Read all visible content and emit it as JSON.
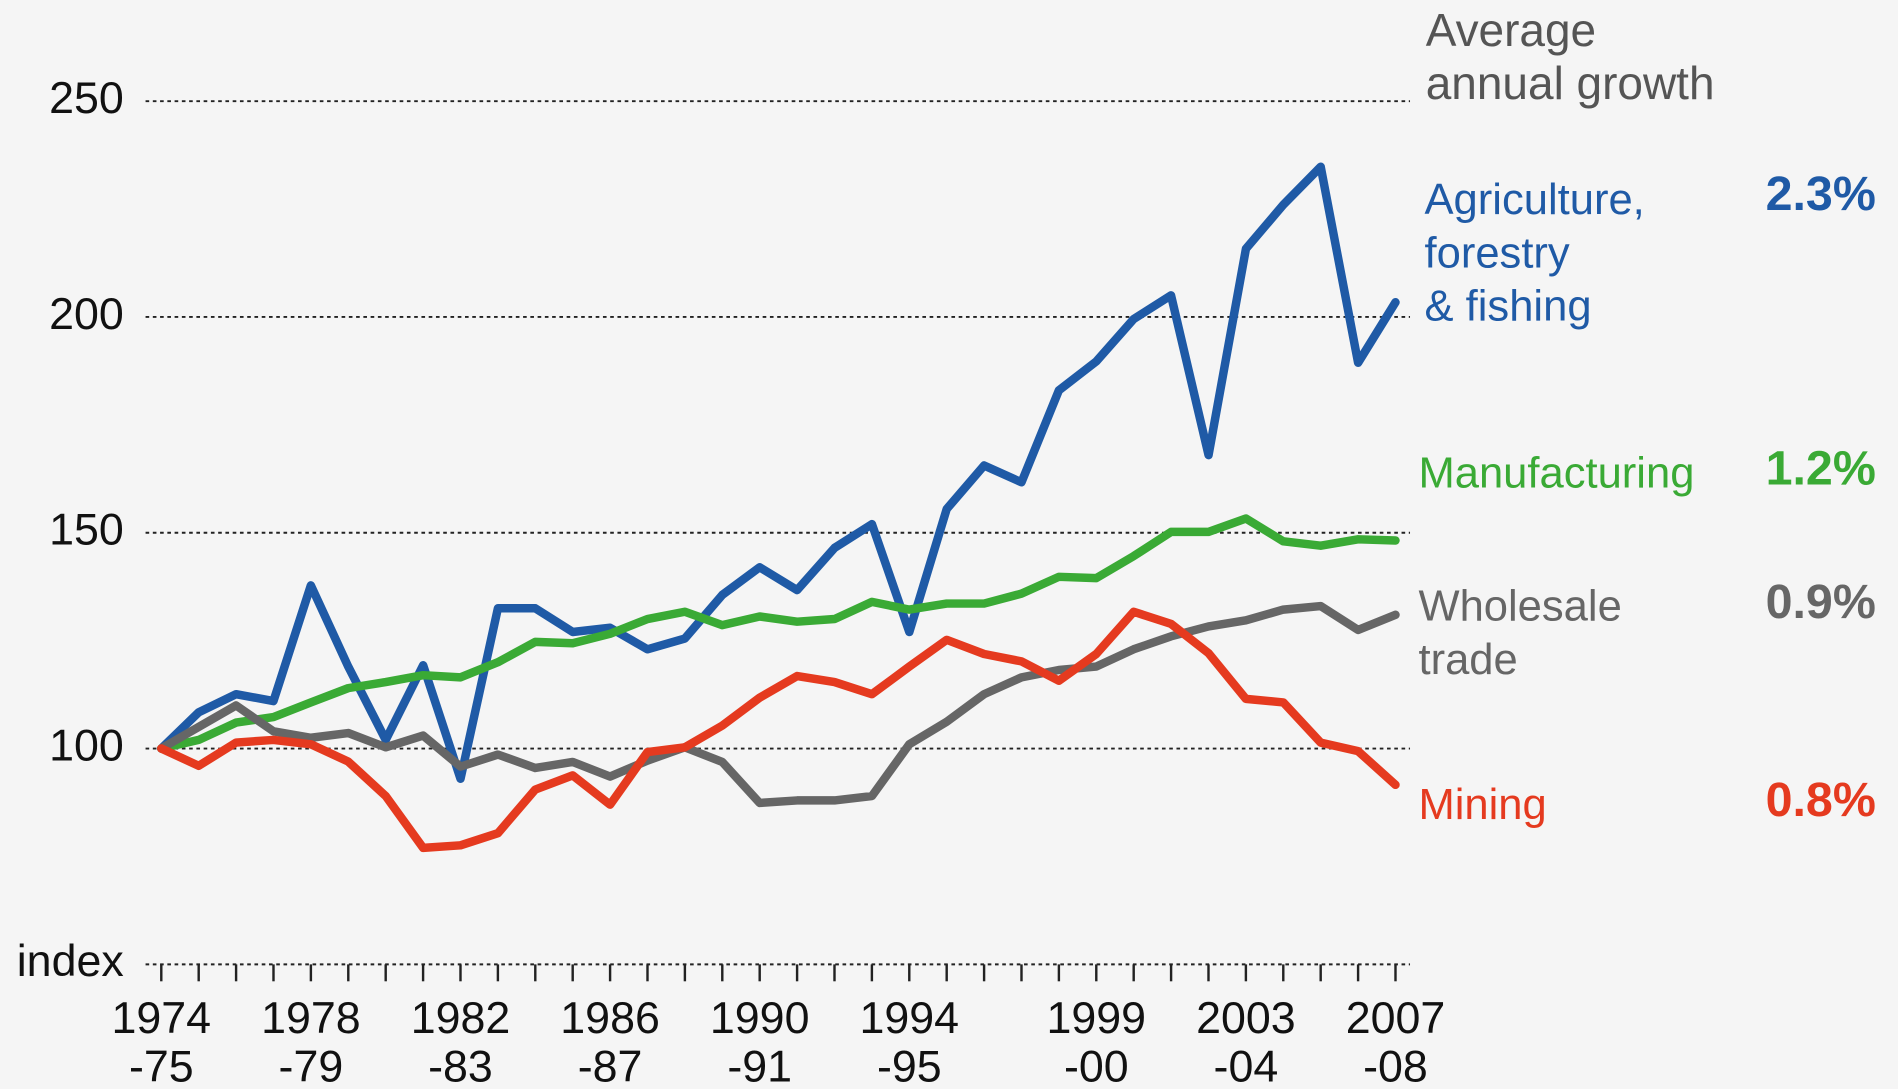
{
  "chart_data": {
    "type": "line",
    "annotation": "Average\nannual growth",
    "y_unit_label": "index",
    "categories": [
      "1974\n-75",
      null,
      null,
      null,
      "1978\n-79",
      null,
      null,
      null,
      "1982\n-83",
      null,
      null,
      null,
      "1986\n-87",
      null,
      null,
      null,
      "1990\n-91",
      null,
      null,
      null,
      "1994\n-95",
      null,
      null,
      null,
      null,
      "1999\n-00",
      null,
      null,
      null,
      "2003\n-04",
      null,
      null,
      null,
      "2007\n-08"
    ],
    "ylim": [
      50,
      260
    ],
    "yticks": [
      100,
      150,
      200,
      250
    ],
    "grid": true,
    "series": [
      {
        "name": "Agriculture,\nforestry\n& fishing",
        "growth_label": "2.3%",
        "color": "#1f5aa6",
        "values": [
          100,
          108.4,
          112.6,
          111,
          137.8,
          119,
          102,
          119.3,
          93,
          132.5,
          132.5,
          127,
          128,
          123,
          125.5,
          135.6,
          142,
          136.7,
          146.5,
          152,
          127,
          155.5,
          165.6,
          161.7,
          183,
          189.7,
          199.5,
          205,
          168,
          215.8,
          226,
          234.8,
          189.4,
          203.4
        ]
      },
      {
        "name": "Manufacturing",
        "growth_label": "1.2%",
        "color": "#3aaa35",
        "values": [
          100,
          102,
          106,
          107.3,
          110.7,
          114,
          115.4,
          117,
          116.5,
          120,
          124.7,
          124.4,
          126.6,
          130,
          131.7,
          128.6,
          130.6,
          129.4,
          130,
          134,
          132.2,
          133.6,
          133.6,
          135.9,
          139.8,
          139.5,
          144.6,
          150.2,
          150.2,
          153.3,
          148,
          147,
          148.5,
          148.2
        ]
      },
      {
        "name": "Wholesale\ntrade",
        "growth_label": "0.9%",
        "color": "#666666",
        "values": [
          100,
          105,
          110,
          104,
          102.5,
          103.6,
          100.3,
          103,
          95.8,
          98.6,
          95.5,
          96.9,
          93.5,
          97.2,
          100.3,
          96.9,
          87.4,
          88,
          88,
          89,
          101,
          106.2,
          112.6,
          116.5,
          118.2,
          119,
          123,
          126,
          128.3,
          129.7,
          132.2,
          133,
          127.5,
          131
        ]
      },
      {
        "name": "Mining",
        "growth_label": "0.8%",
        "color": "#e53a1f",
        "values": [
          100,
          96,
          101.4,
          102,
          101,
          97,
          89,
          77,
          77.6,
          80.4,
          90.5,
          93.8,
          87,
          99.2,
          100.3,
          105.3,
          111.8,
          116.8,
          115.4,
          112.6,
          119,
          125.2,
          121.9,
          120.2,
          115.7,
          121.9,
          131.7,
          128.9,
          122.1,
          111.5,
          110.7,
          101.4,
          99.4,
          91.6
        ]
      }
    ]
  }
}
